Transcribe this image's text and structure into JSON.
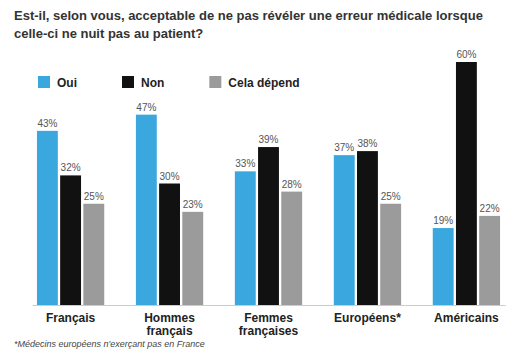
{
  "chart_data": {
    "type": "bar",
    "title": "Est-il, selon vous, acceptable de ne pas révéler une erreur médicale lorsque celle-ci ne nuit pas au patient?",
    "categories": [
      "Français",
      "Hommes français",
      "Femmes françaises",
      "Européens*",
      "Américains"
    ],
    "series": [
      {
        "name": "Oui",
        "color": "#3aa8de",
        "values": [
          43,
          47,
          33,
          37,
          19
        ],
        "value_labels": [
          "43%",
          "47%",
          "33%",
          "37%",
          "19%"
        ]
      },
      {
        "name": "Non",
        "color": "#111111",
        "values": [
          32,
          30,
          39,
          38,
          60
        ],
        "value_labels": [
          "32%",
          "30%",
          "39%",
          "38%",
          "60%"
        ]
      },
      {
        "name": "Cela dépend",
        "color": "#9b9b9b",
        "values": [
          25,
          23,
          28,
          25,
          22
        ],
        "value_labels": [
          "25%",
          "23%",
          "28%",
          "25%",
          "22%"
        ]
      }
    ],
    "ylim": [
      0,
      60
    ],
    "legend": "top-left",
    "data_labels": true,
    "tick_labels": "x",
    "grid": false,
    "annotations": [
      "*Médecins européens n'exerçant pas en France"
    ]
  }
}
